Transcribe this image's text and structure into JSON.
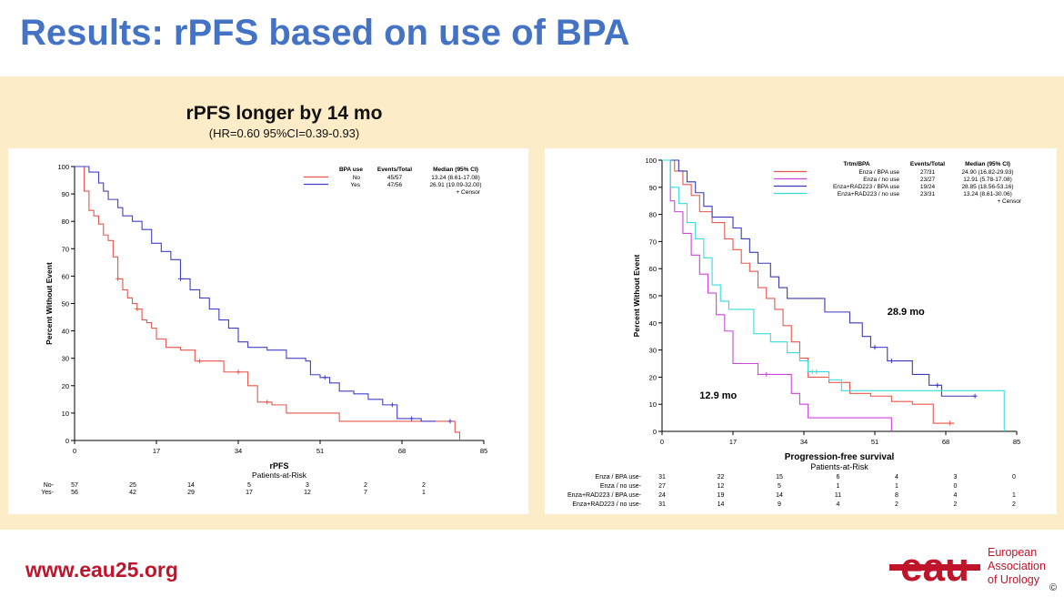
{
  "slide": {
    "title": "Results: rPFS based on use of BPA",
    "headline": "rPFS longer by 14 mo",
    "hr_text": "(HR=0.60 95%CI=0.39-0.93)",
    "url": "www.eau25.org",
    "logo_mark": "eau",
    "logo_lines": [
      "European",
      "Association",
      "of Urology"
    ],
    "copyright": "©",
    "colors": {
      "title": "#4472c4",
      "band": "#fdecc8",
      "url": "#c0142a",
      "logo": "#c0142a"
    }
  },
  "chart_data": [
    {
      "type": "line",
      "subtype": "kaplan-meier",
      "xlabel": "rPFS",
      "ylabel": "Percent Without Event",
      "xlim": [
        0,
        85
      ],
      "ylim": [
        0,
        100
      ],
      "xticks": [
        0,
        17,
        34,
        51,
        68,
        85
      ],
      "yticks": [
        0,
        10,
        20,
        30,
        40,
        50,
        60,
        70,
        80,
        90,
        100
      ],
      "legend": {
        "position": "top-right",
        "headers": [
          "BPA use",
          "Events/Total",
          "Median (95% CI)"
        ],
        "censor_label": "+ Censor"
      },
      "series": [
        {
          "name": "No",
          "color": "#e8574c",
          "events_total": "45/57",
          "median": "13.24 (8.61-17.08)",
          "x": [
            0,
            2,
            3,
            4,
            5,
            6,
            7,
            8,
            9,
            10,
            11,
            12,
            13,
            14,
            15,
            16,
            17,
            19,
            22,
            25,
            28,
            31,
            34,
            36,
            38,
            41,
            44,
            50,
            55,
            65,
            72,
            76,
            79,
            80
          ],
          "y": [
            100,
            91,
            84,
            82,
            79,
            75,
            73,
            67,
            59,
            55,
            52,
            50,
            48,
            44,
            43,
            41,
            37,
            34,
            33,
            29,
            29,
            25,
            25,
            20,
            14,
            13,
            10,
            10,
            7,
            7,
            7,
            7,
            3,
            0
          ],
          "censor_x": [
            9,
            13,
            26,
            34,
            40
          ]
        },
        {
          "name": "Yes",
          "color": "#4040c8",
          "events_total": "47/56",
          "median": "26.91 (19.09-32.00)",
          "x": [
            0,
            3,
            5,
            6,
            7,
            9,
            10,
            12,
            14,
            16,
            18,
            20,
            22,
            24,
            26,
            28,
            30,
            32,
            34,
            36,
            40,
            44,
            48,
            49,
            51,
            53,
            55,
            58,
            61,
            64,
            67,
            72,
            75
          ],
          "y": [
            100,
            98,
            94,
            91,
            88,
            85,
            82,
            80,
            77,
            72,
            69,
            66,
            59,
            55,
            52,
            48,
            44,
            41,
            36,
            34,
            33,
            30,
            29,
            24,
            23,
            21,
            18,
            17,
            15,
            13,
            8,
            7,
            7
          ],
          "censor_x": [
            22,
            52,
            66,
            70,
            78
          ]
        }
      ],
      "at_risk": {
        "title": "Patients-at-Risk",
        "rows": [
          {
            "label": "No-",
            "values": [
              "57",
              "25",
              "14",
              "5",
              "3",
              "2",
              "2"
            ]
          },
          {
            "label": "Yes-",
            "values": [
              "56",
              "42",
              "29",
              "17",
              "12",
              "7",
              "1"
            ]
          }
        ]
      }
    },
    {
      "type": "line",
      "subtype": "kaplan-meier",
      "xlabel": "Progression-free survival",
      "ylabel": "Percent Without Event",
      "xlim": [
        0,
        85
      ],
      "ylim": [
        0,
        100
      ],
      "xticks": [
        0,
        17,
        34,
        51,
        68,
        85
      ],
      "yticks": [
        0,
        10,
        20,
        30,
        40,
        50,
        60,
        70,
        80,
        90,
        100
      ],
      "legend": {
        "position": "top-right",
        "headers": [
          "Trtm/BPA",
          "Events/Total",
          "Median (95% CI)"
        ],
        "censor_label": "+ Censor"
      },
      "annotations": [
        {
          "text": "28.9 mo",
          "x": 54,
          "y": 43
        },
        {
          "text": "12.9 mo",
          "x": 9,
          "y": 12
        }
      ],
      "series": [
        {
          "name": "Enza / BPA use",
          "color": "#e8574c",
          "events_total": "27/31",
          "median": "24.90 (16.82-29.93)",
          "x": [
            0,
            3,
            5,
            7,
            9,
            12,
            15,
            17,
            19,
            21,
            23,
            25,
            27,
            29,
            31,
            33,
            35,
            40,
            45,
            50,
            55,
            60,
            65,
            70
          ],
          "y": [
            100,
            96,
            91,
            87,
            81,
            77,
            71,
            67,
            62,
            59,
            53,
            49,
            45,
            39,
            33,
            27,
            20,
            18,
            14,
            13,
            11,
            10,
            3,
            3
          ],
          "censor_x": [
            69
          ]
        },
        {
          "name": "Enza / no use",
          "color": "#cc44dd",
          "events_total": "23/27",
          "median": "12.91 (5.78-17.08)",
          "x": [
            0,
            2,
            3,
            5,
            7,
            9,
            11,
            13,
            15,
            17,
            23,
            28,
            31,
            33,
            35,
            44,
            52,
            55
          ],
          "y": [
            100,
            85,
            81,
            73,
            65,
            58,
            51,
            43,
            37,
            25,
            21,
            21,
            14,
            10,
            5,
            5,
            5,
            0
          ],
          "censor_x": [
            25
          ]
        },
        {
          "name": "Enza+RAD223 / BPA use",
          "color": "#3a3ab8",
          "events_total": "19/24",
          "median": "28.85 (18.56-53.16)",
          "x": [
            0,
            4,
            6,
            8,
            10,
            12,
            14,
            17,
            19,
            21,
            23,
            26,
            28,
            30,
            34,
            39,
            45,
            48,
            50,
            54,
            60,
            64,
            67,
            75
          ],
          "y": [
            100,
            96,
            92,
            88,
            83,
            79,
            79,
            75,
            71,
            66,
            62,
            57,
            53,
            49,
            49,
            44,
            40,
            35,
            31,
            26,
            21,
            17,
            13,
            13
          ],
          "censor_x": [
            51,
            55,
            66,
            75
          ]
        },
        {
          "name": "Enza+RAD223 / no use",
          "color": "#33dddd",
          "events_total": "23/31",
          "median": "13.24 (8.61-30.06)",
          "x": [
            0,
            2,
            4,
            6,
            8,
            10,
            12,
            14,
            16,
            18,
            22,
            26,
            30,
            33,
            35,
            38,
            40,
            43,
            55,
            70,
            78,
            82
          ],
          "y": [
            100,
            90,
            84,
            77,
            71,
            64,
            54,
            48,
            45,
            45,
            36,
            33,
            29,
            26,
            22,
            22,
            19,
            15,
            15,
            15,
            15,
            0
          ],
          "censor_x": [
            36,
            37
          ]
        }
      ],
      "at_risk": {
        "title": "Patients-at-Risk",
        "rows": [
          {
            "label": "Enza / BPA use-",
            "values": [
              "31",
              "22",
              "15",
              "6",
              "4",
              "3",
              "0"
            ]
          },
          {
            "label": "Enza / no use-",
            "values": [
              "27",
              "12",
              "5",
              "1",
              "1",
              "0",
              ""
            ]
          },
          {
            "label": "Enza+RAD223 / BPA use-",
            "values": [
              "24",
              "19",
              "14",
              "11",
              "8",
              "4",
              "1"
            ]
          },
          {
            "label": "Enza+RAD223 / no use-",
            "values": [
              "31",
              "14",
              "9",
              "4",
              "2",
              "2",
              "2"
            ]
          }
        ]
      }
    }
  ]
}
